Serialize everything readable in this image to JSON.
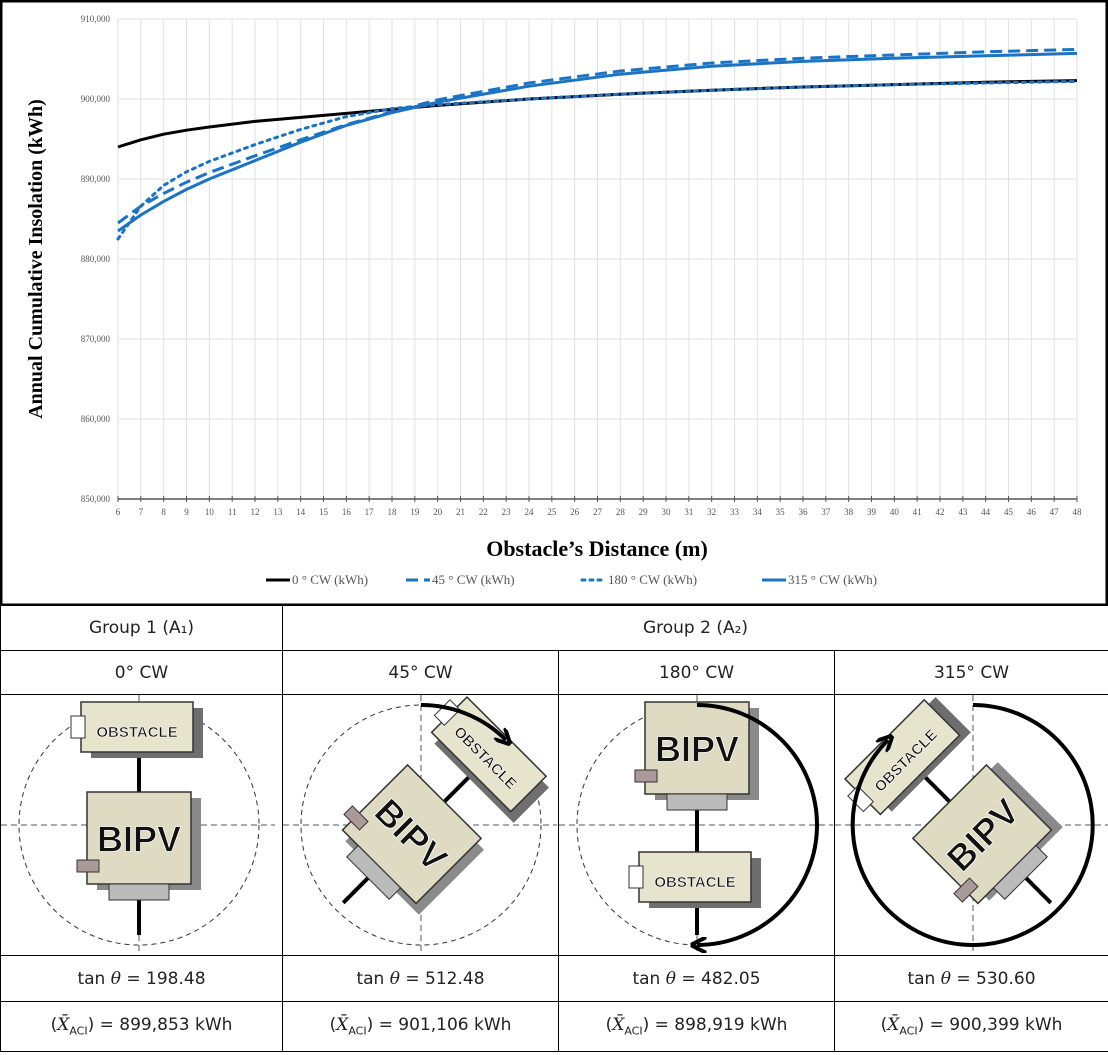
{
  "chart_data": {
    "type": "line",
    "x_label": "Obstacle’s Distance (m)",
    "y_label": "Annual Cumulative Insolation (kWh)",
    "x": [
      6,
      7,
      8,
      9,
      10,
      12,
      14,
      16,
      18,
      20,
      24,
      28,
      32,
      36,
      40,
      44,
      48
    ],
    "xlim": [
      6,
      48
    ],
    "xticks": [
      6,
      7,
      8,
      9,
      10,
      11,
      12,
      13,
      14,
      15,
      16,
      17,
      18,
      19,
      20,
      21,
      22,
      23,
      24,
      25,
      26,
      27,
      28,
      29,
      30,
      31,
      32,
      33,
      34,
      35,
      36,
      37,
      38,
      39,
      40,
      41,
      42,
      43,
      44,
      45,
      46,
      47,
      48
    ],
    "ylim": [
      850000,
      910000
    ],
    "yticks": [
      {
        "value": 850000,
        "label": "850,000"
      },
      {
        "value": 860000,
        "label": "860,000"
      },
      {
        "value": 870000,
        "label": "870,000"
      },
      {
        "value": 880000,
        "label": "880,000"
      },
      {
        "value": 890000,
        "label": "890,000"
      },
      {
        "value": 900000,
        "label": "900,000"
      },
      {
        "value": 910000,
        "label": "910,000"
      }
    ],
    "grid": true,
    "legend": "bottom",
    "series": [
      {
        "name": "0 ° CW (kWh)",
        "color": "#000000",
        "dash": "solid",
        "values": [
          894000,
          894900,
          895600,
          896100,
          896500,
          897200,
          897700,
          898200,
          898700,
          899200,
          900000,
          900600,
          901100,
          901500,
          901800,
          902100,
          902300
        ]
      },
      {
        "name": "45 ° CW (kWh)",
        "color": "#1a73c4",
        "dash": "dashed",
        "values": [
          884500,
          886600,
          888200,
          889600,
          890800,
          892900,
          894900,
          896800,
          898400,
          899900,
          902000,
          903500,
          904500,
          905100,
          905500,
          905900,
          906200
        ]
      },
      {
        "name": "180 ° CW (kWh)",
        "color": "#1a73c4",
        "dash": "dotted",
        "values": [
          882500,
          886600,
          889200,
          890900,
          892200,
          894300,
          896200,
          897800,
          898800,
          899300,
          900000,
          900600,
          901100,
          901500,
          901800,
          902000,
          902200
        ]
      },
      {
        "name": "315 ° CW (kWh)",
        "color": "#1a73c4",
        "dash": "solid",
        "values": [
          883500,
          885500,
          887200,
          888700,
          890000,
          892300,
          894600,
          896700,
          898300,
          899600,
          901600,
          903100,
          904100,
          904700,
          905100,
          905400,
          905700
        ]
      }
    ]
  },
  "table": {
    "group_headers": [
      "Group 1 (A₁)",
      "Group 2 (A₂)"
    ],
    "orientations": [
      "0° CW",
      "45° CW",
      "180° CW",
      "315° CW"
    ],
    "obstacle_label": "OBSTACLE",
    "bipv_label": "BIPV",
    "tan_fn": "tan",
    "tan_symbol": "θ",
    "tan_values": [
      "= 198.48",
      "= 512.48",
      "= 482.05",
      "= 530.60"
    ],
    "aci_open": "(",
    "aci_symbol": "X̄",
    "aci_sub": "ACI",
    "aci_close": ")",
    "aci_values": [
      "= 899,853 kWh",
      "= 901,106 kWh",
      "= 898,919 kWh",
      "= 900,399 kWh"
    ]
  }
}
